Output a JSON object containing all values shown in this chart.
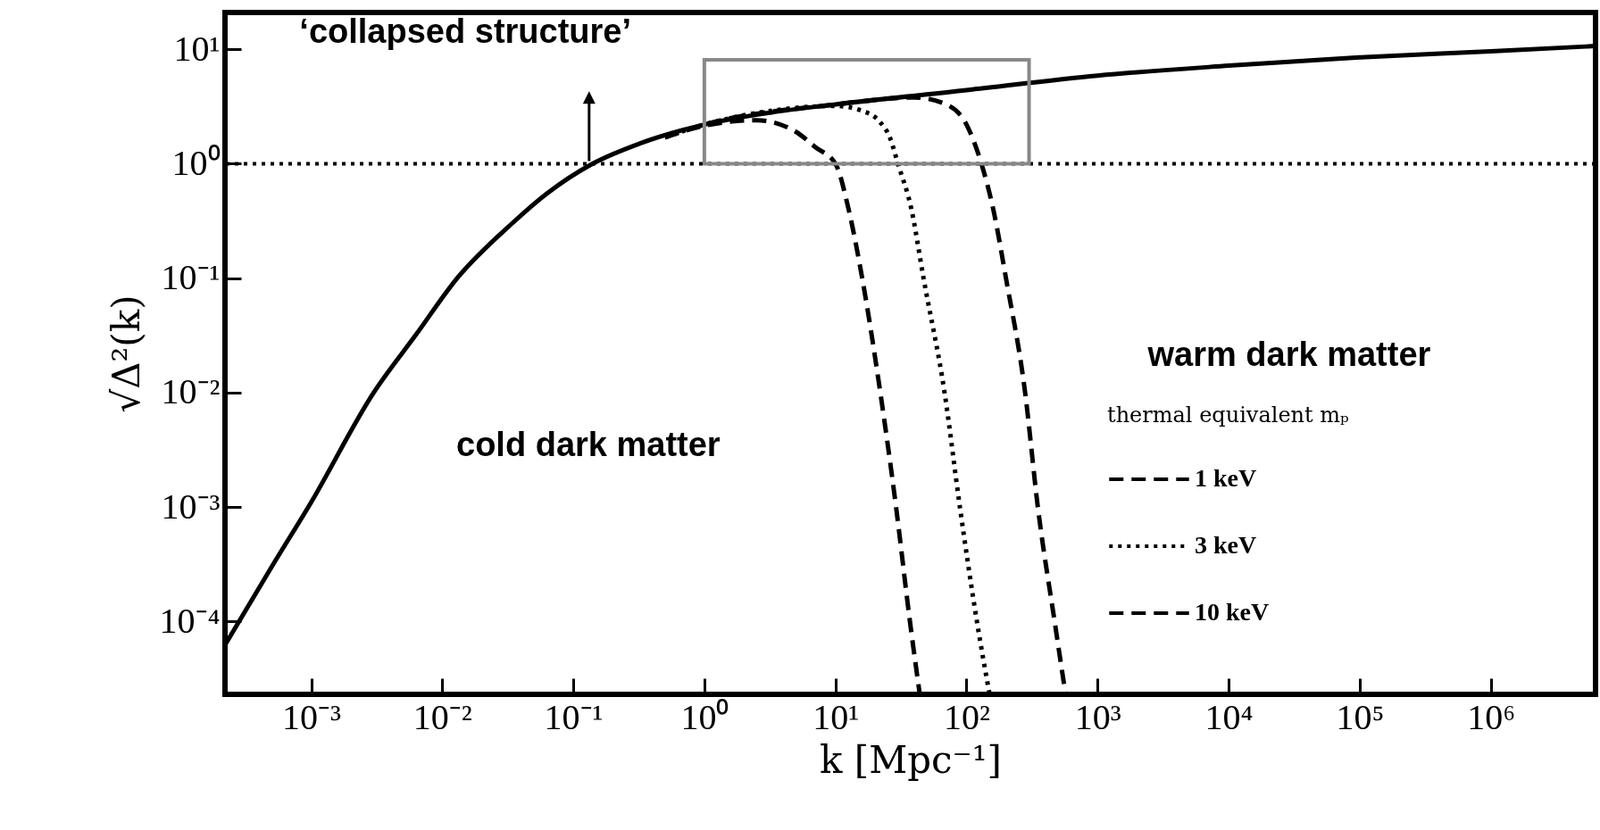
{
  "chart_data": {
    "type": "line",
    "xlabel": "k [Mpc⁻¹]",
    "ylabel": "√Δ²(k)",
    "legend_title": "thermal equivalent mₚ",
    "legend": "right",
    "log": "xy",
    "grid": false,
    "xlim": [
      0.00022,
      6300000
    ],
    "ylim": [
      2.3e-05,
      21
    ],
    "xticks": [
      {
        "value": 0.001,
        "label": "10⁻³"
      },
      {
        "value": 0.01,
        "label": "10⁻²"
      },
      {
        "value": 0.1,
        "label": "10⁻¹"
      },
      {
        "value": 1,
        "label": "10⁰"
      },
      {
        "value": 10,
        "label": "10¹"
      },
      {
        "value": 100,
        "label": "10²"
      },
      {
        "value": 1000,
        "label": "10³"
      },
      {
        "value": 10000,
        "label": "10⁴"
      },
      {
        "value": 100000,
        "label": "10⁵"
      },
      {
        "value": 1000000,
        "label": "10⁶"
      }
    ],
    "yticks": [
      {
        "value": 0.0001,
        "label": "10⁻⁴"
      },
      {
        "value": 0.001,
        "label": "10⁻³"
      },
      {
        "value": 0.01,
        "label": "10⁻²"
      },
      {
        "value": 0.1,
        "label": "10⁻¹"
      },
      {
        "value": 1,
        "label": "10⁰"
      },
      {
        "value": 10,
        "label": "10¹"
      }
    ],
    "series": [
      {
        "color": "#000000",
        "line_style": "solid",
        "x": [
          0.00022,
          0.0005,
          0.001,
          0.003,
          0.0063,
          0.013,
          0.034,
          0.063,
          0.14,
          0.32,
          1,
          3.2,
          10,
          100,
          1000,
          10000,
          100000,
          1000000,
          6300000
        ],
        "values": [
          6.2e-05,
          0.0003,
          0.0011,
          0.01,
          0.032,
          0.1,
          0.3,
          0.55,
          1.0,
          1.5,
          2.2,
          2.8,
          3.3,
          4.4,
          5.9,
          7.2,
          8.5,
          9.6,
          10.7
        ]
      },
      {
        "name": "1 keV",
        "color": "#000000",
        "line_style": "dashed",
        "x": [
          0.5,
          1,
          2.5,
          5,
          7,
          10,
          12.6,
          16,
          22,
          29,
          37,
          44
        ],
        "values": [
          1.7,
          2.15,
          2.4,
          1.9,
          1.4,
          1.0,
          0.4,
          0.1,
          0.01,
          0.001,
          0.0001,
          2.3e-05
        ]
      },
      {
        "name": "3 keV",
        "color": "#000000",
        "line_style": "dotted",
        "x": [
          0.5,
          1,
          3.2,
          10,
          16,
          22,
          26,
          30,
          38,
          47,
          68,
          89,
          120,
          150
        ],
        "values": [
          1.7,
          2.2,
          2.9,
          3.2,
          2.9,
          2.3,
          1.7,
          1.0,
          0.4,
          0.1,
          0.01,
          0.001,
          0.0001,
          2.3e-05
        ]
      },
      {
        "name": "10 keV",
        "color": "#000000",
        "line_style": "dashed",
        "x": [
          0.5,
          1,
          10,
          40,
          70,
          100,
          130,
          160,
          200,
          280,
          350,
          470,
          570
        ],
        "values": [
          1.7,
          2.2,
          3.3,
          3.8,
          3.3,
          2.2,
          1.0,
          0.4,
          0.1,
          0.01,
          0.001,
          0.0001,
          2.3e-05
        ]
      }
    ],
    "ref_lines": [
      {
        "axis": "y",
        "value": 1,
        "color": "#000000",
        "line_style": "dotted"
      }
    ],
    "annotations": [
      "‘collapsed structure’",
      "cold dark matter",
      "warm dark matter"
    ]
  }
}
